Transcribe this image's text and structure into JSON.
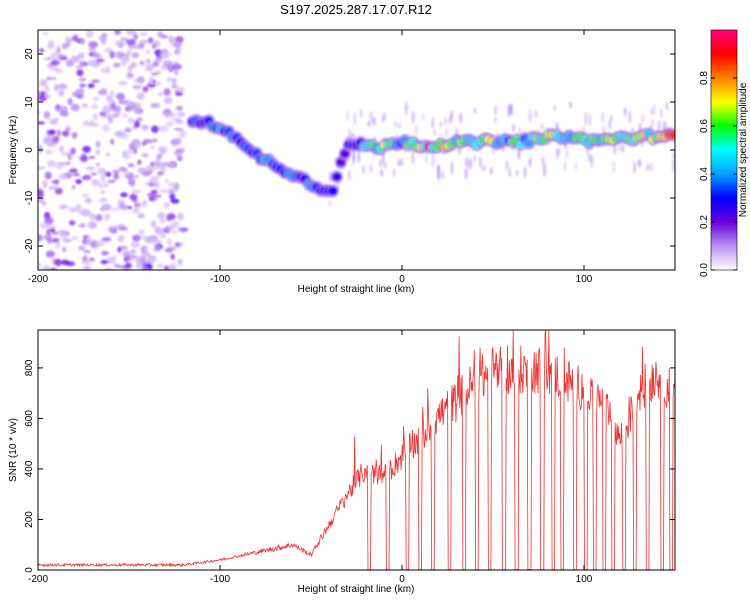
{
  "title": "S197.2025.287.17.07.R12",
  "chart_data": [
    {
      "type": "heatmap",
      "name": "spectrogram",
      "xlabel": "Height of straight line (km)",
      "ylabel": "Frequency (Hz)",
      "xlim": [
        -200,
        150
      ],
      "ylim": [
        -25,
        25
      ],
      "xticks": [
        -200,
        -100,
        0,
        100
      ],
      "yticks": [
        -20,
        -10,
        0,
        10,
        20
      ],
      "colorbar": {
        "label": "Normalized spectral amplitude",
        "range": [
          0,
          1
        ],
        "ticks": [
          0.0,
          0.2,
          0.4,
          0.6,
          0.8
        ],
        "stops": [
          "#ffffff",
          "#b890f0",
          "#6a00e0",
          "#0000ff",
          "#00a0ff",
          "#00ffff",
          "#00ff00",
          "#ffff00",
          "#ff8000",
          "#ff0000",
          "#ff0080"
        ]
      },
      "ridge": {
        "x": [
          -115,
          -105,
          -95,
          -85,
          -75,
          -65,
          -55,
          -45,
          -38,
          -30,
          -20,
          -10,
          0,
          10,
          20,
          30,
          40,
          50,
          60,
          70,
          80,
          90,
          100,
          110,
          120,
          130,
          140,
          150
        ],
        "freq": [
          6,
          5.5,
          4,
          0,
          -2,
          -4,
          -6,
          -8,
          -8,
          1,
          1,
          0.5,
          2,
          1,
          1,
          1.5,
          1.5,
          2,
          1.5,
          2,
          2.5,
          3,
          2,
          2,
          2.5,
          2.5,
          3,
          3
        ],
        "amplitude": [
          0.35,
          0.45,
          0.4,
          0.4,
          0.45,
          0.4,
          0.4,
          0.4,
          0.3,
          0.35,
          0.5,
          0.7,
          0.55,
          0.9,
          0.85,
          0.6,
          0.7,
          0.75,
          0.6,
          0.65,
          0.75,
          0.7,
          0.55,
          0.75,
          0.7,
          0.75,
          0.8,
          0.85
        ]
      },
      "noise_region": [
        -200,
        -120
      ]
    },
    {
      "type": "line",
      "name": "snr",
      "xlabel": "Height of straight line (km)",
      "ylabel": "SNR (10 * v/v)",
      "xlim": [
        -200,
        150
      ],
      "ylim": [
        0,
        950
      ],
      "xticks": [
        -200,
        -100,
        0,
        100
      ],
      "yticks": [
        0,
        200,
        400,
        600,
        800
      ],
      "series": [
        {
          "name": "SNR",
          "color": "#ee3030",
          "envelope_x": [
            -200,
            -120,
            -100,
            -80,
            -60,
            -50,
            -40,
            -30,
            -20,
            -10,
            0,
            10,
            20,
            30,
            40,
            50,
            60,
            70,
            80,
            90,
            100,
            110,
            120,
            125,
            130,
            140,
            150
          ],
          "envelope_y": [
            20,
            20,
            40,
            70,
            100,
            60,
            180,
            300,
            400,
            370,
            450,
            520,
            610,
            670,
            740,
            790,
            780,
            800,
            790,
            750,
            720,
            660,
            520,
            600,
            700,
            780,
            690
          ],
          "dropouts_x": [
            -18,
            -8,
            3,
            10,
            17,
            26,
            34,
            41,
            48,
            56,
            63,
            70,
            77,
            83,
            88,
            95,
            101,
            106,
            111,
            116,
            122,
            128,
            135,
            143,
            148
          ]
        }
      ]
    }
  ]
}
